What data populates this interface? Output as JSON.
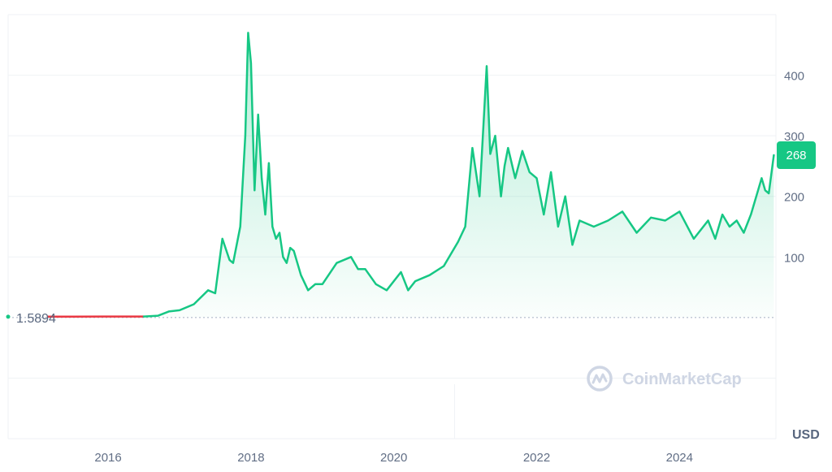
{
  "chart_data": {
    "type": "line",
    "unit_label": "USD",
    "watermark": "CoinMarketCap",
    "start_value_label": "1.5894",
    "current_value_label": "268",
    "x_ticks": [
      "2016",
      "2018",
      "2020",
      "2022",
      "2024"
    ],
    "y_ticks": [
      "100",
      "200",
      "300",
      "400"
    ],
    "ylim": [
      -200,
      500
    ],
    "xlim": [
      2014.6,
      2025.35
    ],
    "grid": true,
    "colors": {
      "line": "#16c784",
      "baseline_before_rise": "#ea3943",
      "label_bg": "#16c784"
    },
    "series": [
      {
        "x": [
          2015.15,
          2015.5,
          2016.0,
          2016.5,
          2016.7,
          2016.85,
          2017.0,
          2017.2,
          2017.4,
          2017.5,
          2017.6,
          2017.7,
          2017.75,
          2017.85,
          2017.92,
          2017.96,
          2018.0,
          2018.05,
          2018.1,
          2018.15,
          2018.2,
          2018.25,
          2018.3,
          2018.35,
          2018.4,
          2018.45,
          2018.5,
          2018.55,
          2018.6,
          2018.7,
          2018.8,
          2018.9,
          2019.0,
          2019.2,
          2019.4,
          2019.5,
          2019.6,
          2019.75,
          2019.9,
          2020.1,
          2020.2,
          2020.3,
          2020.5,
          2020.7,
          2020.9,
          2021.0,
          2021.1,
          2021.2,
          2021.3,
          2021.35,
          2021.42,
          2021.5,
          2021.55,
          2021.6,
          2021.7,
          2021.8,
          2021.9,
          2022.0,
          2022.1,
          2022.2,
          2022.3,
          2022.4,
          2022.5,
          2022.6,
          2022.8,
          2023.0,
          2023.2,
          2023.4,
          2023.6,
          2023.8,
          2024.0,
          2024.2,
          2024.4,
          2024.5,
          2024.6,
          2024.7,
          2024.8,
          2024.9,
          2025.0,
          2025.1,
          2025.15,
          2025.2,
          2025.25,
          2025.32
        ],
        "values": [
          1.6,
          1.6,
          1.7,
          1.7,
          3,
          10,
          12,
          22,
          45,
          40,
          130,
          95,
          90,
          150,
          300,
          470,
          420,
          210,
          335,
          230,
          170,
          255,
          150,
          130,
          140,
          100,
          90,
          115,
          110,
          70,
          45,
          55,
          55,
          90,
          100,
          80,
          80,
          55,
          45,
          75,
          45,
          60,
          70,
          85,
          125,
          150,
          280,
          200,
          415,
          270,
          300,
          200,
          250,
          280,
          230,
          275,
          240,
          230,
          170,
          240,
          150,
          200,
          120,
          160,
          150,
          160,
          175,
          140,
          165,
          160,
          175,
          130,
          160,
          130,
          170,
          150,
          160,
          140,
          170,
          210,
          230,
          210,
          205,
          268
        ]
      }
    ]
  }
}
